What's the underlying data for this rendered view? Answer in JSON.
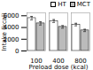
{
  "chart_data": {
    "type": "bar",
    "categories": [
      "100",
      "400",
      "800"
    ],
    "series": [
      {
        "name": "HT",
        "color": "white",
        "values": [
          5600,
          5100,
          4500
        ],
        "errors": [
          300,
          250,
          220
        ]
      },
      {
        "name": "MCT",
        "color": "#bbbbbb",
        "values": [
          4700,
          4100,
          3500
        ],
        "errors": [
          280,
          220,
          200
        ]
      }
    ],
    "xlabel": "Preload dose (kcal)",
    "ylabel": "Intake (kcal)",
    "ylim": [
      0,
      6500
    ],
    "yticks": [
      0,
      2000,
      4000,
      6000
    ],
    "legend": "upper right"
  }
}
